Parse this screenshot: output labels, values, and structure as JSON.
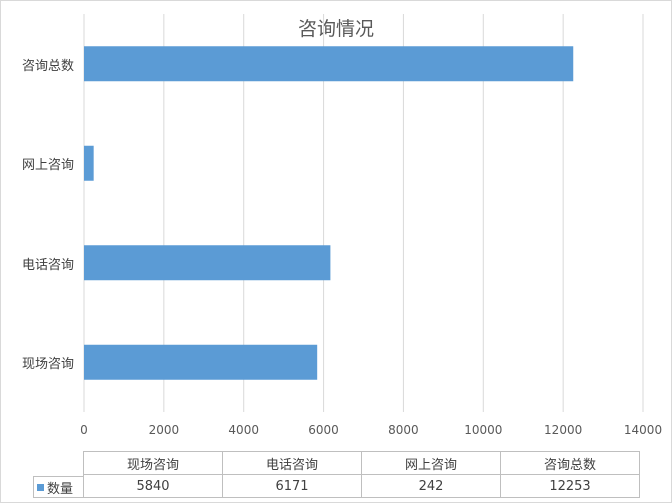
{
  "chart_data": {
    "type": "bar",
    "orientation": "horizontal",
    "title": "咨询情况",
    "categories": [
      "现场咨询",
      "电话咨询",
      "网上咨询",
      "咨询总数"
    ],
    "series": [
      {
        "name": "数量",
        "values": [
          5840,
          6171,
          242,
          12253
        ],
        "color": "#5b9bd5"
      }
    ],
    "xlim": [
      0,
      14000
    ],
    "x_ticks": [
      "0",
      "2000",
      "4000",
      "6000",
      "8000",
      "10000",
      "12000",
      "14000"
    ],
    "grid": true,
    "data_table": true,
    "table_values": [
      "5840",
      "6171",
      "242",
      "12253"
    ]
  }
}
